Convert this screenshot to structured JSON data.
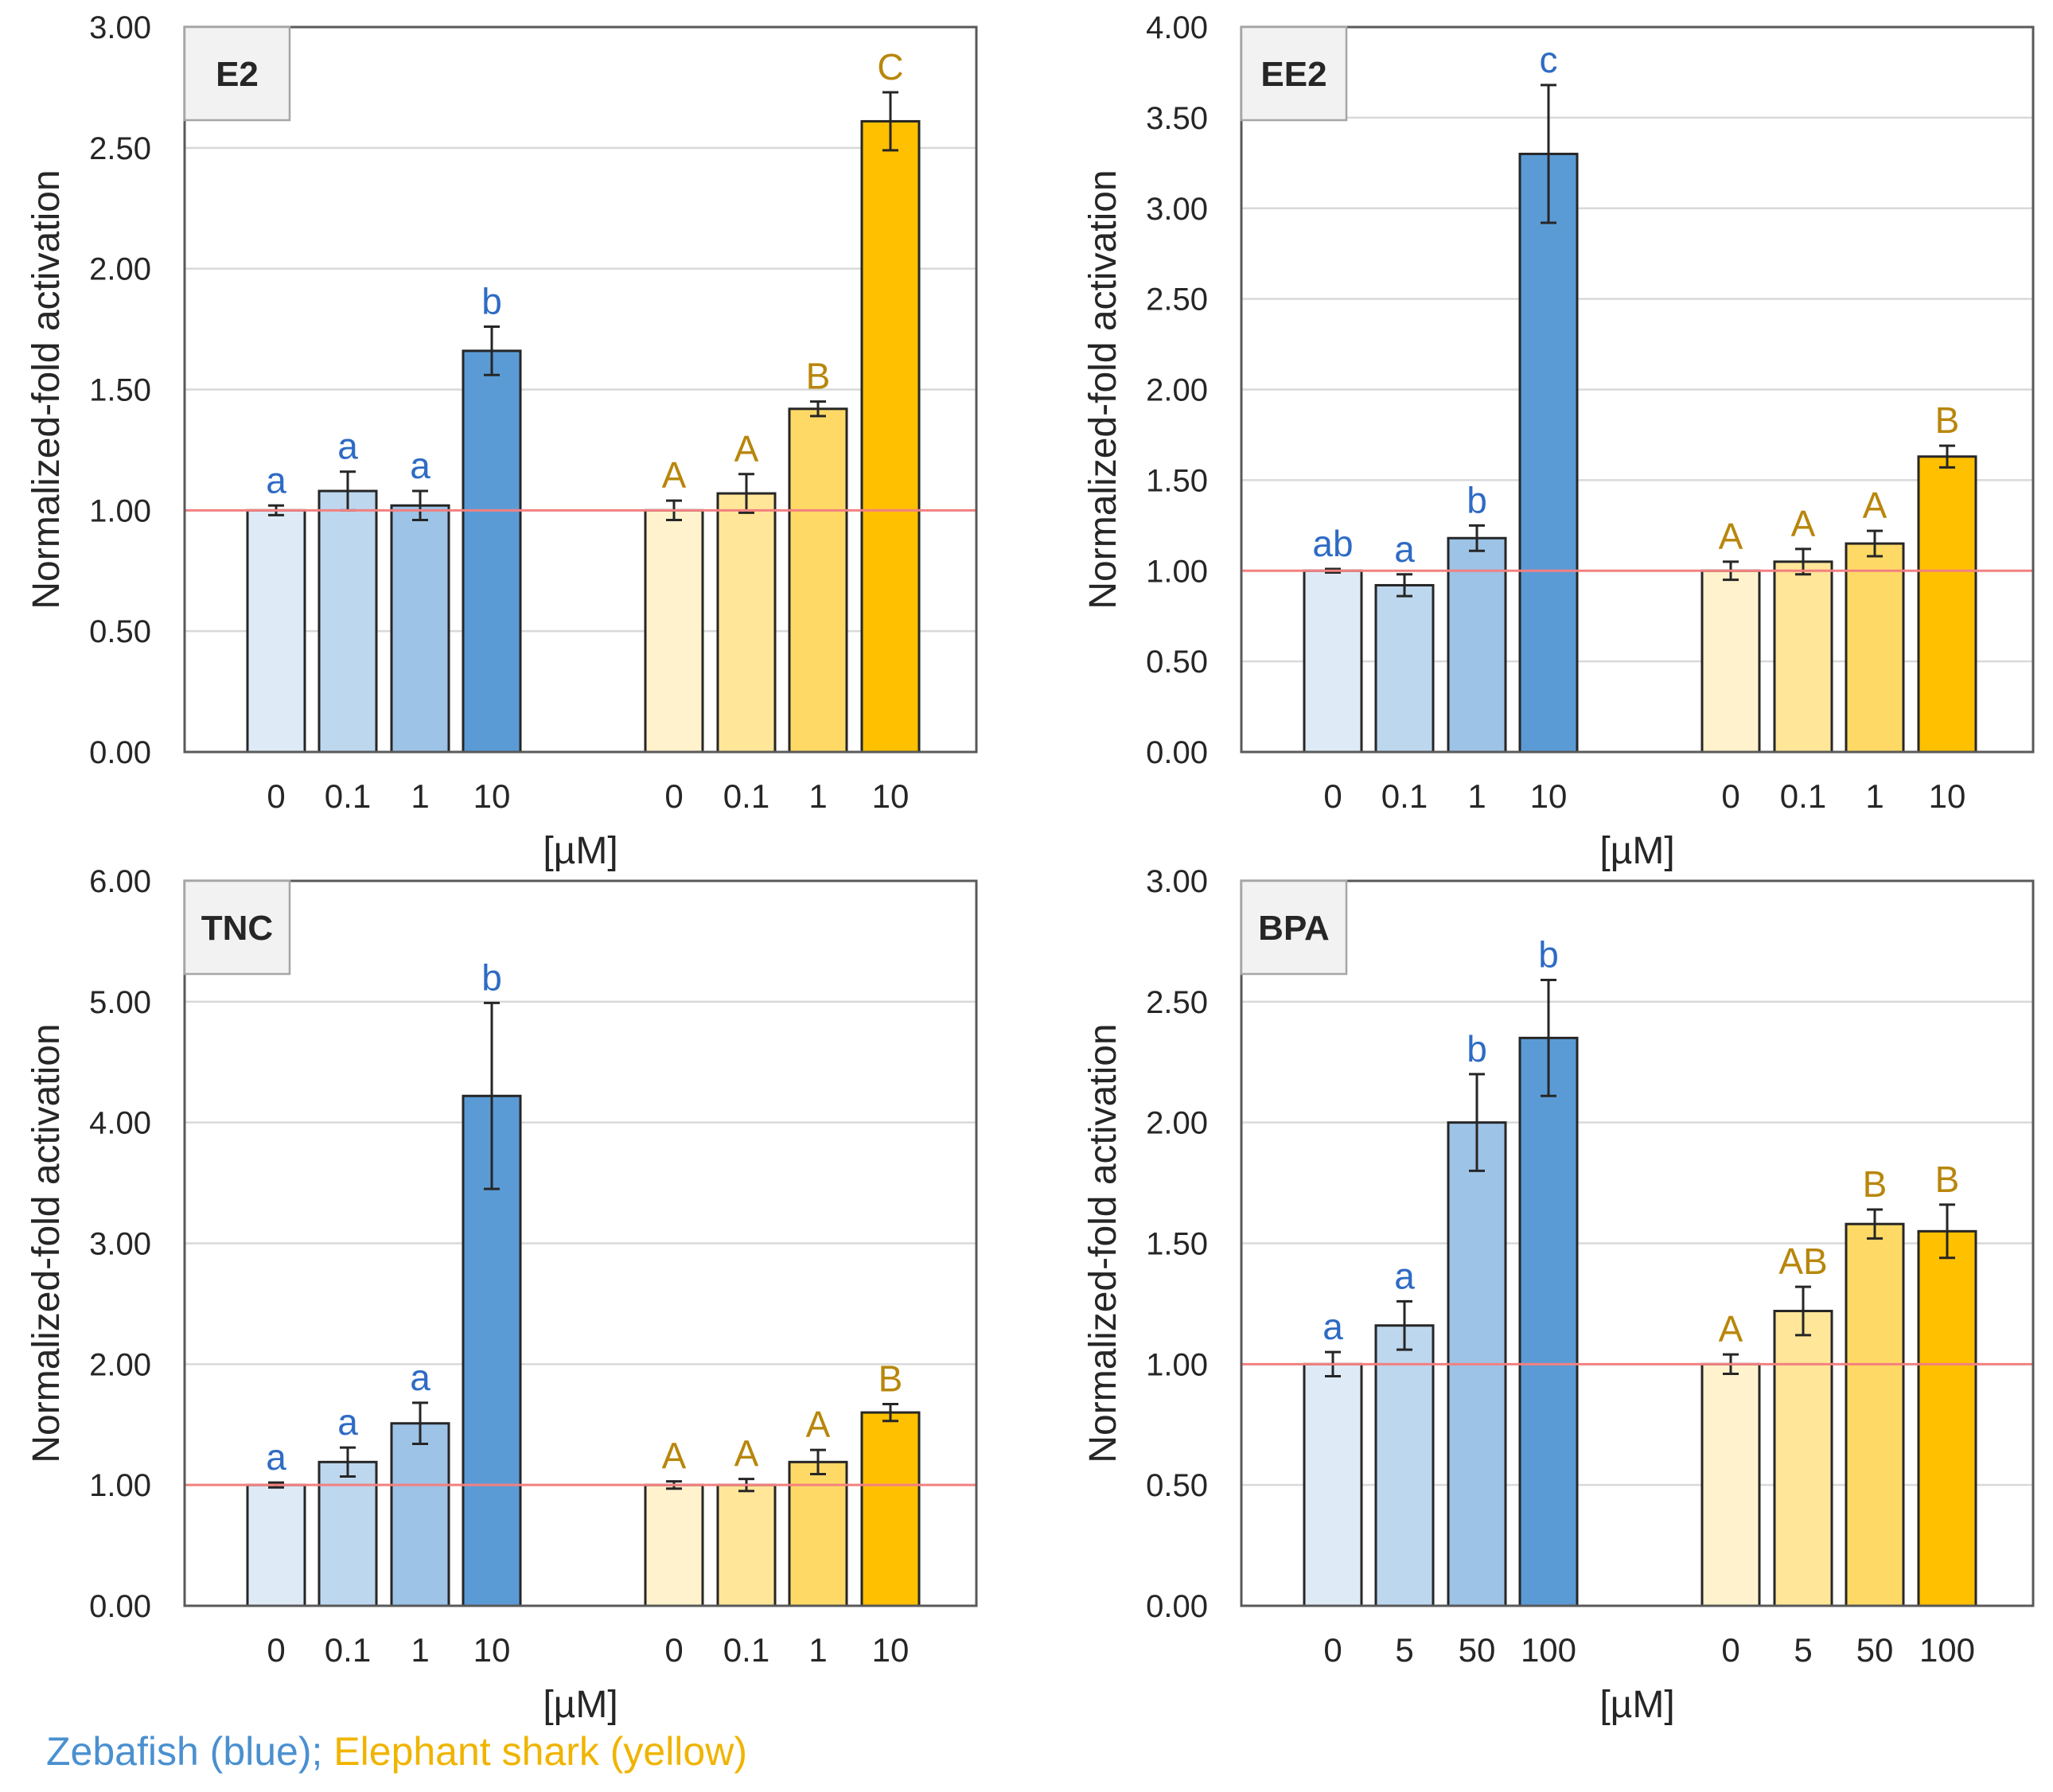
{
  "legend": {
    "zebrafish": "Zebafish (blue)",
    "separator": "; ",
    "shark": "Elephant shark (yellow)"
  },
  "colors": {
    "blue": [
      "#deebf7",
      "#bdd7ee",
      "#9dc3e6",
      "#5b9bd5"
    ],
    "yellow": [
      "#fff2cc",
      "#ffe699",
      "#ffd966",
      "#ffc000"
    ],
    "blue_letter": "#2e6bc4",
    "yellow_letter": "#b8860b",
    "reference_line": "#f28080",
    "grid": "#d9d9d9",
    "axis": "#595959",
    "label_box_fill": "#f2f2f2"
  },
  "chart_data": [
    {
      "type": "bar",
      "title": "E2",
      "xlabel": "[µM]",
      "ylabel": "Normalized-fold activation",
      "ylim": [
        0,
        3
      ],
      "ytick_step": 0.5,
      "reference_y": 1.0,
      "groups": [
        {
          "name": "Zebrafish",
          "color": "blue",
          "categories": [
            "0",
            "0.1",
            "1",
            "10"
          ],
          "values": [
            1.0,
            1.08,
            1.02,
            1.66
          ],
          "errors": [
            0.02,
            0.08,
            0.06,
            0.1
          ],
          "letters": [
            "a",
            "a",
            "a",
            "b"
          ]
        },
        {
          "name": "Elephant shark",
          "color": "yellow",
          "categories": [
            "0",
            "0.1",
            "1",
            "10"
          ],
          "values": [
            1.0,
            1.07,
            1.42,
            2.61
          ],
          "errors": [
            0.04,
            0.08,
            0.03,
            0.12
          ],
          "letters": [
            "A",
            "A",
            "B",
            "C"
          ]
        }
      ]
    },
    {
      "type": "bar",
      "title": "EE2",
      "xlabel": "[µM]",
      "ylabel": "Normalized-fold activation",
      "ylim": [
        0,
        4
      ],
      "ytick_step": 0.5,
      "reference_y": 1.0,
      "groups": [
        {
          "name": "Zebrafish",
          "color": "blue",
          "categories": [
            "0",
            "0.1",
            "1",
            "10"
          ],
          "values": [
            1.0,
            0.92,
            1.18,
            3.3
          ],
          "errors": [
            0.01,
            0.06,
            0.07,
            0.38
          ],
          "letters": [
            "ab",
            "a",
            "b",
            "c"
          ]
        },
        {
          "name": "Elephant shark",
          "color": "yellow",
          "categories": [
            "0",
            "0.1",
            "1",
            "10"
          ],
          "values": [
            1.0,
            1.05,
            1.15,
            1.63
          ],
          "errors": [
            0.05,
            0.07,
            0.07,
            0.06
          ],
          "letters": [
            "A",
            "A",
            "A",
            "B"
          ]
        }
      ]
    },
    {
      "type": "bar",
      "title": "TNC",
      "xlabel": "[µM]",
      "ylabel": "Normalized-fold activation",
      "ylim": [
        0,
        6
      ],
      "ytick_step": 1,
      "reference_y": 1.0,
      "groups": [
        {
          "name": "Zebrafish",
          "color": "blue",
          "categories": [
            "0",
            "0.1",
            "1",
            "10"
          ],
          "values": [
            1.0,
            1.19,
            1.51,
            4.22
          ],
          "errors": [
            0.02,
            0.12,
            0.17,
            0.77
          ],
          "letters": [
            "a",
            "a",
            "a",
            "b"
          ]
        },
        {
          "name": "Elephant shark",
          "color": "yellow",
          "categories": [
            "0",
            "0.1",
            "1",
            "10"
          ],
          "values": [
            1.0,
            1.0,
            1.19,
            1.6
          ],
          "errors": [
            0.03,
            0.05,
            0.1,
            0.07
          ],
          "letters": [
            "A",
            "A",
            "A",
            "B"
          ]
        }
      ]
    },
    {
      "type": "bar",
      "title": "BPA",
      "xlabel": "[µM]",
      "ylabel": "Normalized-fold activation",
      "ylim": [
        0,
        3
      ],
      "ytick_step": 0.5,
      "reference_y": 1.0,
      "groups": [
        {
          "name": "Zebrafish",
          "color": "blue",
          "categories": [
            "0",
            "5",
            "50",
            "100"
          ],
          "values": [
            1.0,
            1.16,
            2.0,
            2.35
          ],
          "errors": [
            0.05,
            0.1,
            0.2,
            0.24
          ],
          "letters": [
            "a",
            "a",
            "b",
            "b"
          ]
        },
        {
          "name": "Elephant shark",
          "color": "yellow",
          "categories": [
            "0",
            "5",
            "50",
            "100"
          ],
          "values": [
            1.0,
            1.22,
            1.58,
            1.55
          ],
          "errors": [
            0.04,
            0.1,
            0.06,
            0.11
          ],
          "letters": [
            "A",
            "AB",
            "B",
            "B"
          ]
        }
      ]
    }
  ]
}
